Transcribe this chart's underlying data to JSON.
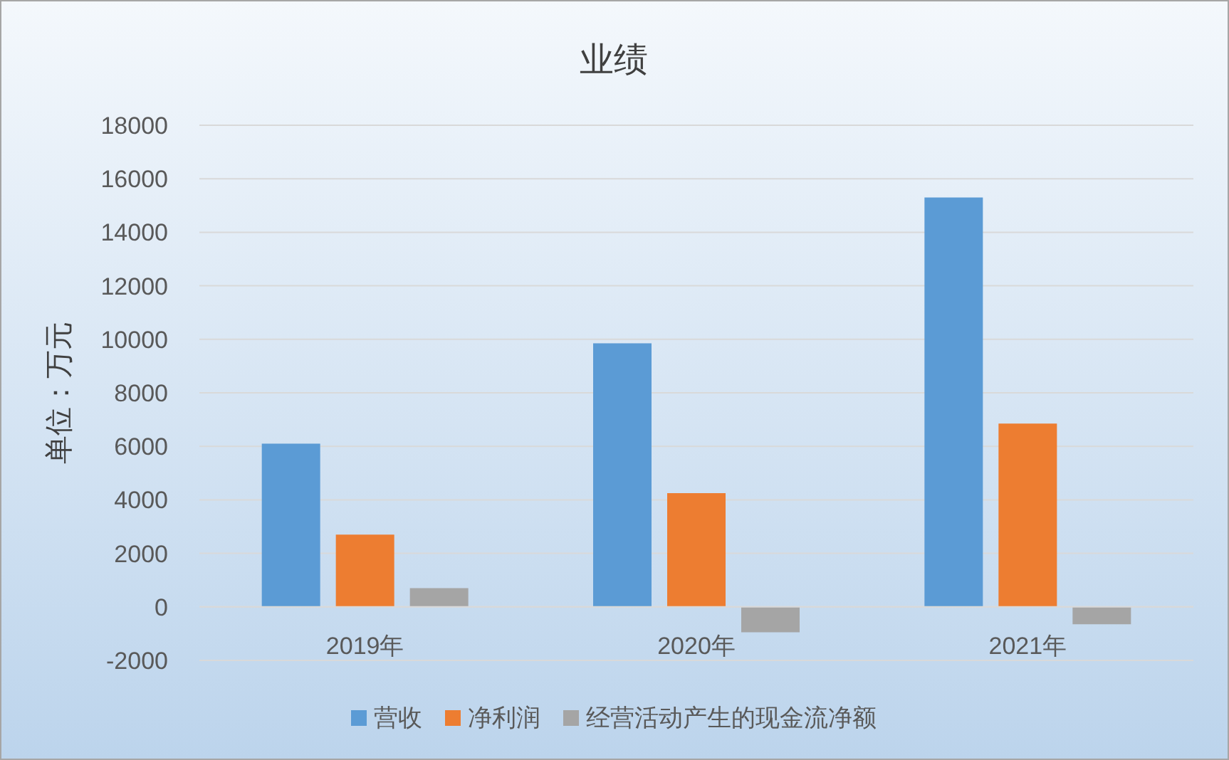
{
  "chart_data": {
    "type": "bar",
    "title": "业绩",
    "ylabel": "单位：万元",
    "categories": [
      "2019年",
      "2020年",
      "2021年"
    ],
    "series": [
      {
        "name": "营收",
        "color": "#5b9bd5",
        "values": [
          6100,
          9850,
          15300
        ]
      },
      {
        "name": "净利润",
        "color": "#ed7d31",
        "values": [
          2700,
          4250,
          6850
        ]
      },
      {
        "name": "经营活动产生的现金流净额",
        "color": "#a5a5a5",
        "values": [
          700,
          -950,
          -650
        ]
      }
    ],
    "ylim": [
      -2000,
      18000
    ],
    "yticks": [
      -2000,
      0,
      2000,
      4000,
      6000,
      8000,
      10000,
      12000,
      14000,
      16000,
      18000
    ],
    "grid": "y",
    "legend": "bottom"
  }
}
